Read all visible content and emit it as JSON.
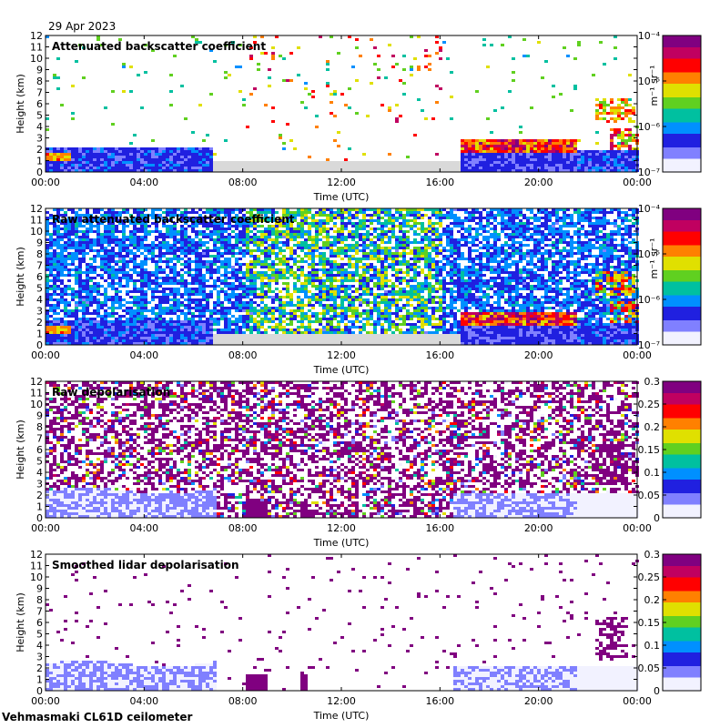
{
  "header": {
    "date": "29 Apr 2023"
  },
  "footer": {
    "instrument": "Vehmasmaki CL61D ceilometer"
  },
  "common": {
    "xlabel": "Time (UTC)",
    "ylabel": "Height (km)",
    "xticks": [
      "00:00",
      "04:00",
      "08:00",
      "12:00",
      "16:00",
      "20:00",
      "00:00"
    ],
    "yticks": [
      "0",
      "1",
      "2",
      "3",
      "4",
      "5",
      "6",
      "7",
      "8",
      "9",
      "10",
      "11",
      "12"
    ]
  },
  "colorbar_log": {
    "ticks": [
      "10⁻⁷",
      "10⁻⁶",
      "10⁻⁵",
      "10⁻⁴"
    ],
    "unit": "m⁻¹ sr⁻¹"
  },
  "colorbar_lin": {
    "ticks": [
      "0",
      "0.05",
      "0.1",
      "0.15",
      "0.2",
      "0.25",
      "0.3"
    ]
  },
  "colors": {
    "no_signal": "#d9d9d9",
    "colormap": [
      "#f2f2ff",
      "#8080ff",
      "#2020e0",
      "#0090ff",
      "#00c0a0",
      "#60d020",
      "#e0e000",
      "#ff8000",
      "#ff0000",
      "#c00060",
      "#800080"
    ]
  },
  "chart_data": [
    {
      "type": "heatmap",
      "title": "Attenuated backscatter coefficient",
      "xlabel": "Time (UTC)",
      "ylabel": "Height (km)",
      "xlim": [
        0,
        24
      ],
      "ylim": [
        0,
        12
      ],
      "scale": "log",
      "clim": [
        1e-07,
        0.0001
      ],
      "features": [
        {
          "t": [
            0,
            6.7
          ],
          "h": [
            0,
            2.2
          ],
          "level": "low"
        },
        {
          "t": [
            0,
            1.0
          ],
          "h": [
            1.0,
            1.8
          ],
          "level": "high"
        },
        {
          "t": [
            16.7,
            21.5
          ],
          "h": [
            1.8,
            3.0
          ],
          "level": "very high"
        },
        {
          "t": [
            22.3,
            23.8
          ],
          "h": [
            4.5,
            6.5
          ],
          "level": "high"
        }
      ]
    },
    {
      "type": "heatmap",
      "title": "Raw attenuated backscatter coefficient",
      "xlabel": "Time (UTC)",
      "ylabel": "Height (km)",
      "xlim": [
        0,
        24
      ],
      "ylim": [
        0,
        12
      ],
      "scale": "log",
      "clim": [
        1e-07,
        0.0001
      ]
    },
    {
      "type": "heatmap",
      "title": "Raw depolarisation",
      "xlabel": "Time (UTC)",
      "ylabel": "Height (km)",
      "xlim": [
        0,
        24
      ],
      "ylim": [
        0,
        12
      ],
      "scale": "linear",
      "clim": [
        0,
        0.3
      ]
    },
    {
      "type": "heatmap",
      "title": "Smoothed lidar depolarisation",
      "xlabel": "Time (UTC)",
      "ylabel": "Height (km)",
      "xlim": [
        0,
        24
      ],
      "ylim": [
        0,
        12
      ],
      "scale": "linear",
      "clim": [
        0,
        0.3
      ]
    }
  ]
}
